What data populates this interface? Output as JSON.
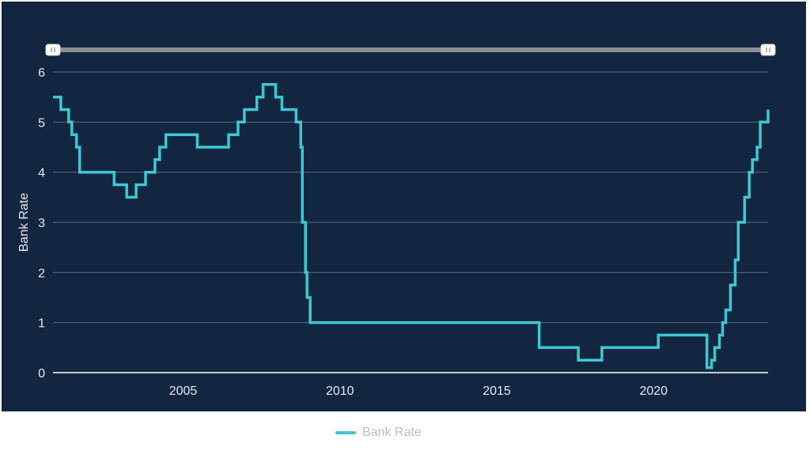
{
  "colors": {
    "panel_bg": "#132640",
    "series": "#3cc8d3",
    "grid": "#5a6b80",
    "axis_text": "#e6e9ee",
    "navigator_track": "#8c8f93",
    "navigator_handle": "#ffffff",
    "legend_text": "#b9bfc6"
  },
  "legend": {
    "label": "Bank Rate"
  },
  "chart_data": {
    "type": "line",
    "title": "",
    "xlabel": "",
    "ylabel": "Bank Rate",
    "xlim": [
      2000.85,
      2023.65
    ],
    "ylim": [
      0,
      6
    ],
    "y_ticks": [
      0,
      1,
      2,
      3,
      4,
      5,
      6
    ],
    "x_ticks": [
      2005,
      2010,
      2015,
      2020
    ],
    "x_tick_labels": [
      "2005",
      "2010",
      "2015",
      "2020"
    ],
    "grid": true,
    "legend_position": "bottom-center",
    "navigator": {
      "start": 2000.85,
      "end": 2023.65
    },
    "series": [
      {
        "name": "Bank Rate",
        "step": true,
        "x": [
          2000.85,
          2001.1,
          2001.35,
          2001.45,
          2001.6,
          2001.7,
          2002.8,
          2003.2,
          2003.5,
          2003.8,
          2004.1,
          2004.25,
          2004.45,
          2005.45,
          2006.45,
          2006.75,
          2006.95,
          2007.35,
          2007.55,
          2007.95,
          2008.15,
          2008.6,
          2008.75,
          2008.8,
          2008.9,
          2008.95,
          2009.05,
          2016.35,
          2017.6,
          2018.35,
          2020.15,
          2021.7,
          2021.85,
          2021.95,
          2022.1,
          2022.2,
          2022.3,
          2022.45,
          2022.6,
          2022.7,
          2022.9,
          2023.05,
          2023.15,
          2023.3,
          2023.4,
          2023.65
        ],
        "values": [
          5.5,
          5.25,
          5.0,
          4.75,
          4.5,
          4.0,
          3.75,
          3.5,
          3.75,
          4.0,
          4.25,
          4.5,
          4.75,
          4.5,
          4.75,
          5.0,
          5.25,
          5.5,
          5.75,
          5.5,
          5.25,
          5.0,
          4.5,
          3.0,
          2.0,
          1.5,
          1.0,
          0.5,
          0.25,
          0.5,
          0.75,
          0.1,
          0.25,
          0.5,
          0.75,
          1.0,
          1.25,
          1.75,
          2.25,
          3.0,
          3.5,
          4.0,
          4.25,
          4.5,
          5.0,
          5.25
        ]
      }
    ]
  }
}
